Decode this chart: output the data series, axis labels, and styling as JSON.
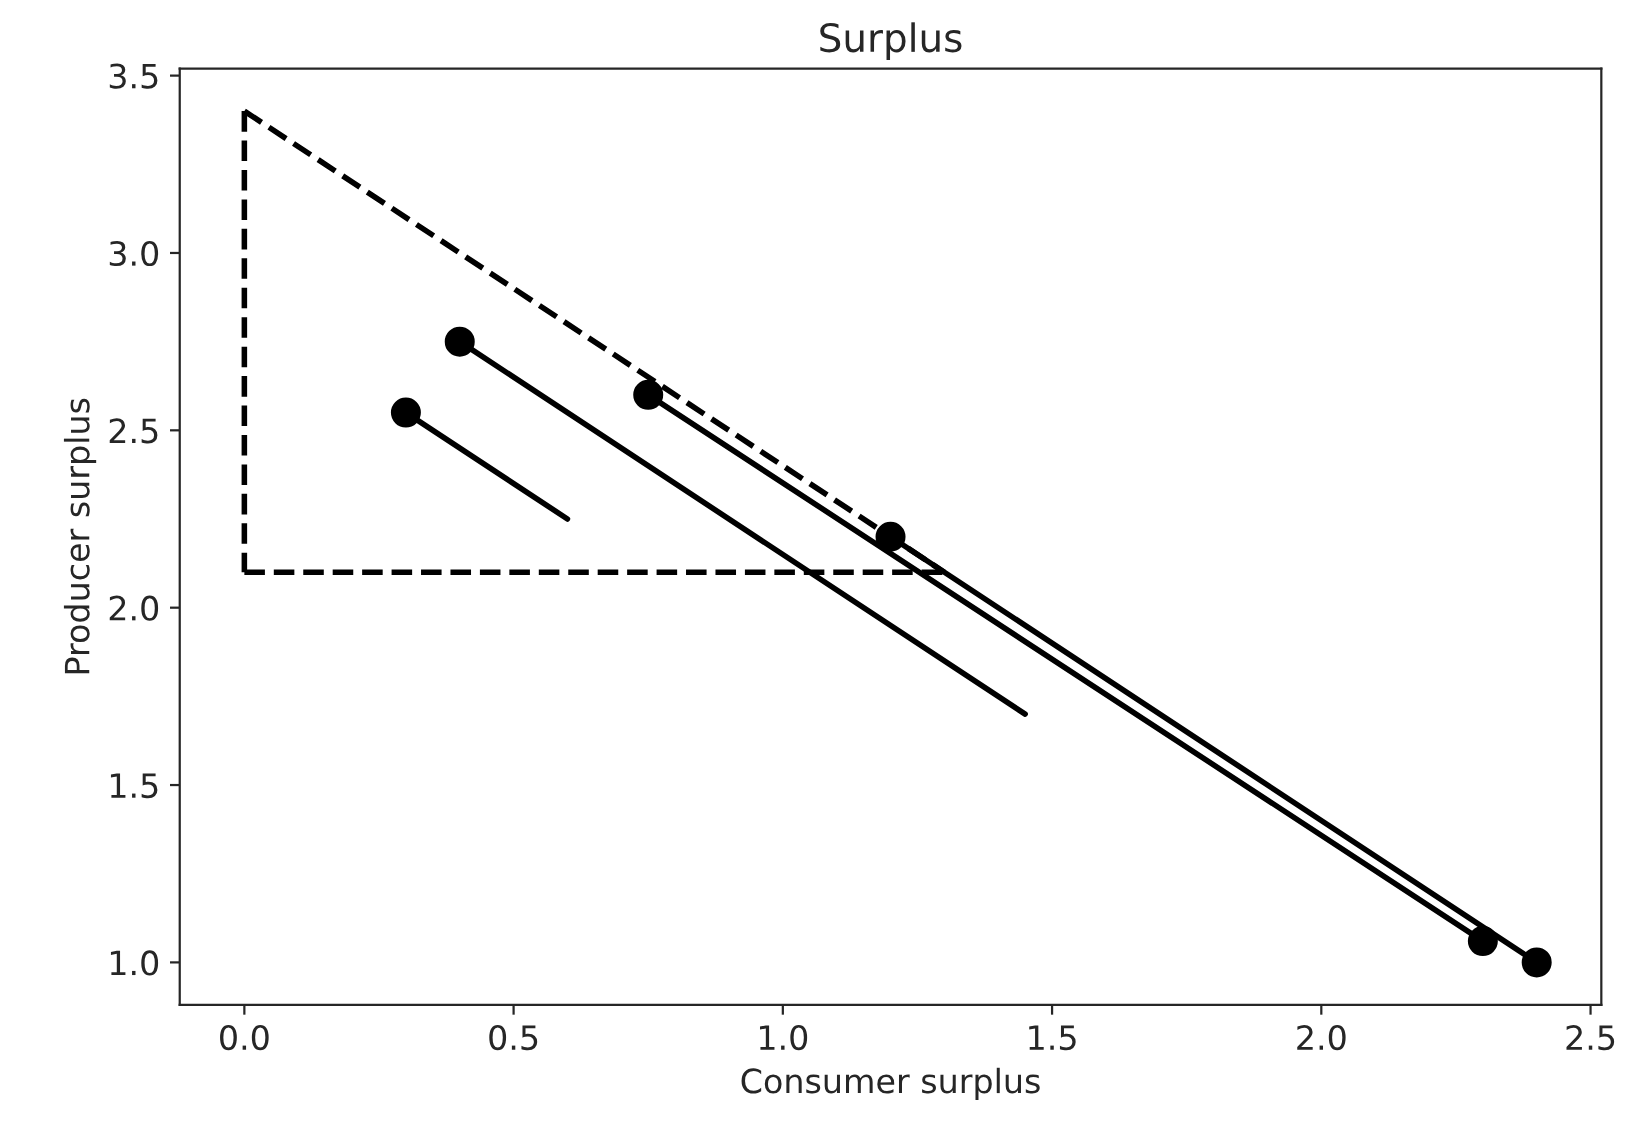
{
  "chart_data": {
    "type": "line",
    "title": "Surplus",
    "xlabel": "Consumer surplus",
    "ylabel": "Producer surplus",
    "xlim": [
      -0.12,
      2.52
    ],
    "ylim": [
      0.88,
      3.52
    ],
    "xticks": [
      {
        "value": 0,
        "label": "0.0"
      },
      0.5,
      {
        "value": 1,
        "label": "1.0"
      },
      1.5,
      {
        "value": 2,
        "label": "2.0"
      },
      2.5
    ],
    "yticks": [
      {
        "value": 1,
        "label": "1.0"
      },
      1.5,
      {
        "value": 2,
        "label": "2.0"
      },
      2.5,
      {
        "value": 3,
        "label": "3.0"
      },
      3.5
    ],
    "grid": false,
    "legend": false,
    "series": [
      {
        "color": "#000000",
        "line_style": "dashed",
        "marker": "none",
        "x": [
          0,
          0
        ],
        "values": [
          3.4,
          2.1
        ]
      },
      {
        "color": "#000000",
        "line_style": "dashed",
        "marker": "none",
        "x": [
          0,
          1.3
        ],
        "values": [
          2.1,
          2.1
        ]
      },
      {
        "color": "#000000",
        "line_style": "dashed",
        "marker": "none",
        "x": [
          0,
          1.3
        ],
        "values": [
          3.4,
          2.1
        ]
      },
      {
        "color": "#000000",
        "line_style": "solid",
        "marker": "none",
        "x": [
          0.3,
          0.6
        ],
        "values": [
          2.55,
          2.25
        ]
      },
      {
        "color": "#000000",
        "line_style": "solid",
        "marker": "none",
        "x": [
          0.4,
          1.45
        ],
        "values": [
          2.75,
          1.7
        ]
      },
      {
        "color": "#000000",
        "line_style": "solid",
        "marker": "none",
        "x": [
          0.75,
          2.3
        ],
        "values": [
          2.6,
          1.06
        ]
      },
      {
        "color": "#000000",
        "line_style": "solid",
        "marker": "none",
        "x": [
          1.2,
          2.4
        ],
        "values": [
          2.2,
          1.0
        ]
      },
      {
        "type": "scatter",
        "color": "#000000",
        "marker": "circle",
        "x": [
          0.3,
          0.4,
          0.75,
          1.2,
          2.3,
          2.4
        ],
        "values": [
          2.55,
          2.75,
          2.6,
          2.2,
          1.06,
          1.0
        ]
      }
    ]
  }
}
